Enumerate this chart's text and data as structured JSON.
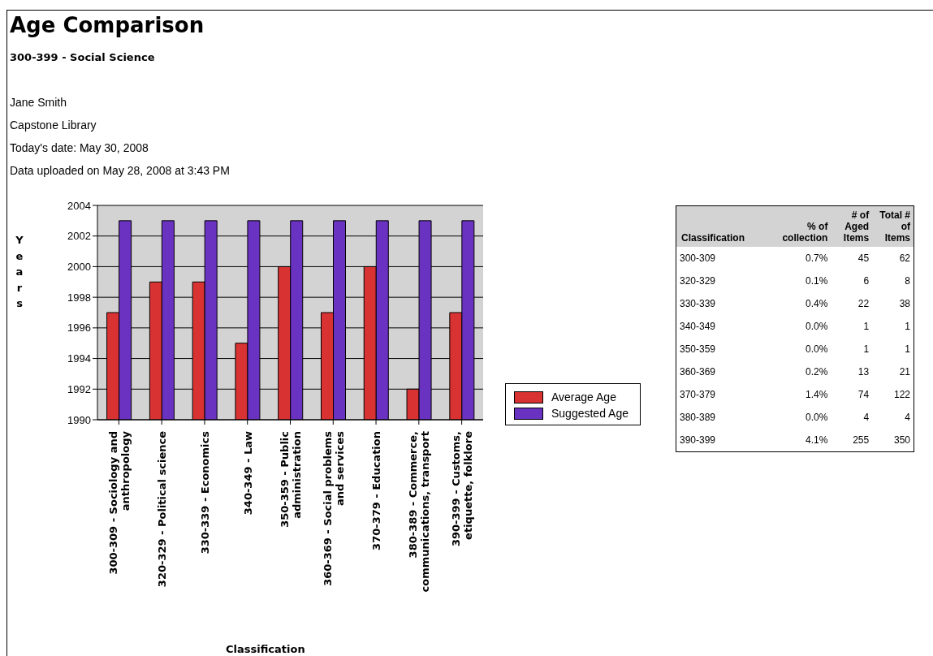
{
  "chart_data": [
    {
      "type": "bar",
      "title": "Age Comparison",
      "subtitle": "300-399 - Social Science",
      "annotations": [
        "Jane Smith",
        "Capstone Library",
        "Today's date: May 30, 2008",
        "Data uploaded on May 28, 2008 at 3:43 PM"
      ],
      "xlabel": "Classification",
      "ylabel": "Years",
      "categories": [
        "300-309 - Sociology and anthropology",
        "320-329 - Political science",
        "330-339 - Economics",
        "340-349 - Law",
        "350-359 - Public administration",
        "360-369 - Social problems and services",
        "370-379 - Education",
        "380-389 - Commerce, communications, transport",
        "390-399 - Customs, etiquette, folklore"
      ],
      "series": [
        {
          "name": "Average Age",
          "color": "#d93232",
          "values": [
            1997,
            1999,
            1999,
            1995,
            2000,
            1997,
            2000,
            1992,
            1997
          ]
        },
        {
          "name": "Suggested Age",
          "color": "#6a32c0",
          "values": [
            2003,
            2003,
            2003,
            2003,
            2003,
            2003,
            2003,
            2003,
            2003
          ]
        }
      ],
      "ylim": [
        1990,
        2004
      ],
      "yticks": [
        1990,
        1992,
        1994,
        1996,
        1998,
        2000,
        2002,
        2004
      ],
      "grid": "y",
      "legend": "right"
    },
    {
      "type": "other",
      "xlabel": "Classification",
      "categories": [
        "300-309",
        "320-329",
        "330-339",
        "340-349",
        "350-359",
        "360-369",
        "370-379",
        "380-389",
        "390-399"
      ],
      "series": [
        {
          "name": "% of collection",
          "values": [
            0.7,
            0.1,
            0.4,
            0.0,
            0.0,
            0.2,
            1.4,
            0.0,
            4.1
          ],
          "value_labels": [
            "0.7%",
            "0.1%",
            "0.4%",
            "0.0%",
            "0.0%",
            "0.2%",
            "1.4%",
            "0.0%",
            "4.1%"
          ]
        },
        {
          "name": "# of Aged Items",
          "values": [
            45,
            6,
            22,
            1,
            1,
            13,
            74,
            4,
            255
          ]
        },
        {
          "name": "Total # of Items",
          "values": [
            62,
            8,
            38,
            1,
            1,
            21,
            122,
            4,
            350
          ]
        }
      ],
      "data_labels": true
    }
  ]
}
